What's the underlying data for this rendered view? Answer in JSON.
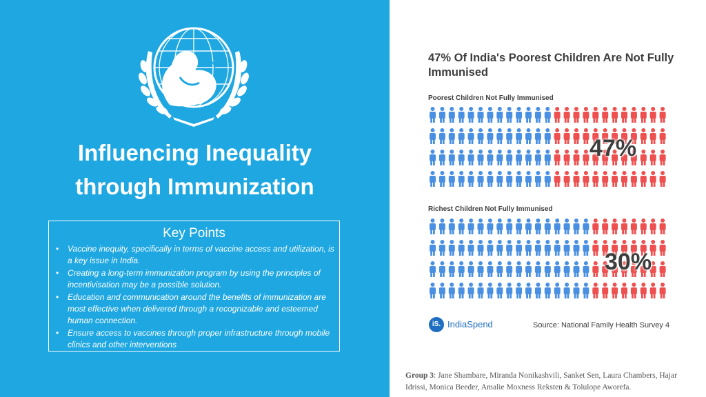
{
  "title_lines": [
    "Influencing Inequality",
    "through Immunization"
  ],
  "key_points": {
    "heading": "Key Points",
    "items": [
      "Vaccine inequity, specifically in terms of vaccine access and utilization, is a key issue in India.",
      "Creating a long-term immunization program by using the principles of incentivisation may be a possible solution.",
      "Education and communication around the benefits of immunization are most effective when delivered through a recognizable and esteemed human connection.",
      "Ensure access to vaccines through proper infrastructure through mobile clinics and other interventions"
    ]
  },
  "infographic": {
    "title": "47% Of India's Poorest Children Are Not Fully Immunised",
    "panels": [
      {
        "label": "Poorest Children Not Fully Immunised",
        "percent": 47,
        "percent_text": "47%"
      },
      {
        "label": "Richest Children Not Fully Immunised",
        "percent": 30,
        "percent_text": "30%"
      }
    ],
    "logo_text": "iS.",
    "brand": "IndiaSpend",
    "source": "Source: National Family Health Survey 4",
    "colors": {
      "not_immunised": "#ee5050",
      "immunised": "#4a90e2"
    }
  },
  "credits": {
    "label": "Group 3",
    "text": ": Jane Shambare, Miranda Nonikashvili, Sanket Sen, Laura Chambers, Hajar Idrissi, Monica Beeder, Amalie Moxness Reksten & Tolulope Aworefa."
  },
  "colors": {
    "left_panel": "#1ea7e1"
  }
}
